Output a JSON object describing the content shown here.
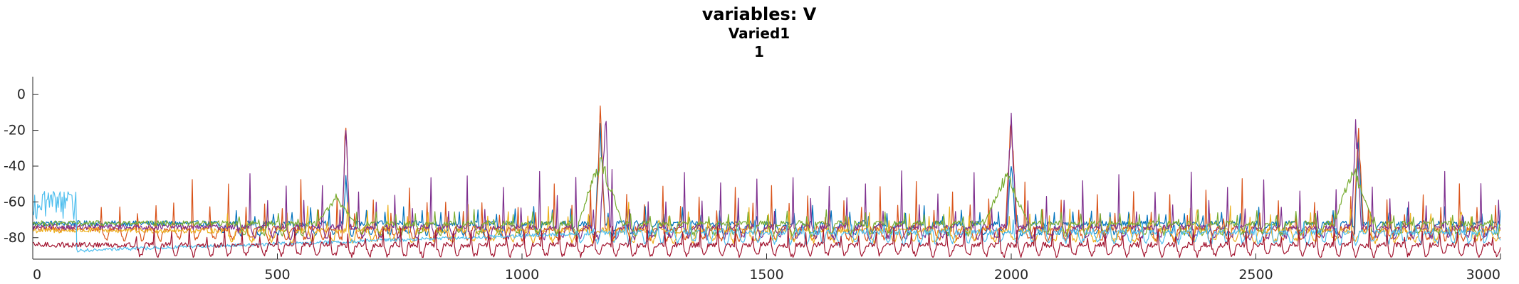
{
  "chart_data": {
    "type": "line",
    "title": "variables: V",
    "subtitle": "Varied1",
    "subtitle2": "1",
    "xlabel": "",
    "ylabel": "",
    "xlim": [
      0,
      3000
    ],
    "ylim": [
      -92,
      10
    ],
    "xticks": [
      0,
      500,
      1000,
      1500,
      2000,
      2500,
      3000
    ],
    "yticks": [
      0,
      -20,
      -40,
      -60,
      -80
    ],
    "grid": false,
    "legend": "none",
    "series": [
      {
        "color": "#0072bd",
        "baseline": -72,
        "amp": 10,
        "period": 38,
        "phase": 4,
        "start": 380,
        "bursts": [
          [
            640,
            -40,
            6
          ],
          [
            1160,
            -10,
            10
          ],
          [
            2000,
            -30,
            8
          ],
          [
            2710,
            -15,
            8
          ]
        ]
      },
      {
        "color": "#d95319",
        "baseline": -75,
        "amp": 30,
        "period": 37,
        "phase": 9,
        "start": 120,
        "bursts": [
          [
            640,
            -5,
            8
          ],
          [
            1160,
            -5,
            10
          ],
          [
            2000,
            -5,
            12
          ],
          [
            2710,
            -10,
            10
          ]
        ]
      },
      {
        "color": "#edb120",
        "baseline": -76,
        "amp": 12,
        "period": 41,
        "phase": 15,
        "start": 380,
        "bursts": [
          [
            1280,
            -68,
            6
          ],
          [
            2380,
            -62,
            6
          ],
          [
            2920,
            -62,
            6
          ]
        ]
      },
      {
        "color": "#7e2f8e",
        "baseline": -74,
        "amp": 35,
        "period": 37,
        "phase": 2,
        "start": 420,
        "bursts": [
          [
            640,
            -10,
            8
          ],
          [
            1170,
            0,
            10
          ],
          [
            2000,
            0,
            10
          ],
          [
            2705,
            -5,
            10
          ]
        ]
      },
      {
        "color": "#77ac30",
        "baseline": -72,
        "amp": 8,
        "period": 40,
        "phase": 20,
        "start": 420,
        "bursts": [
          [
            620,
            -55,
            40
          ],
          [
            1160,
            -30,
            45
          ],
          [
            1990,
            -40,
            45
          ],
          [
            2700,
            -35,
            40
          ]
        ]
      },
      {
        "color": "#4dbeee",
        "baseline": -77,
        "amp": 6,
        "period": 33,
        "phase": 11,
        "start": 1100,
        "bursts": [
          [
            40,
            -60,
            40
          ]
        ]
      },
      {
        "color": "#a2142f",
        "baseline": -84,
        "amp": 10,
        "period": 36,
        "phase": 6,
        "start": 200,
        "bursts": []
      }
    ]
  }
}
